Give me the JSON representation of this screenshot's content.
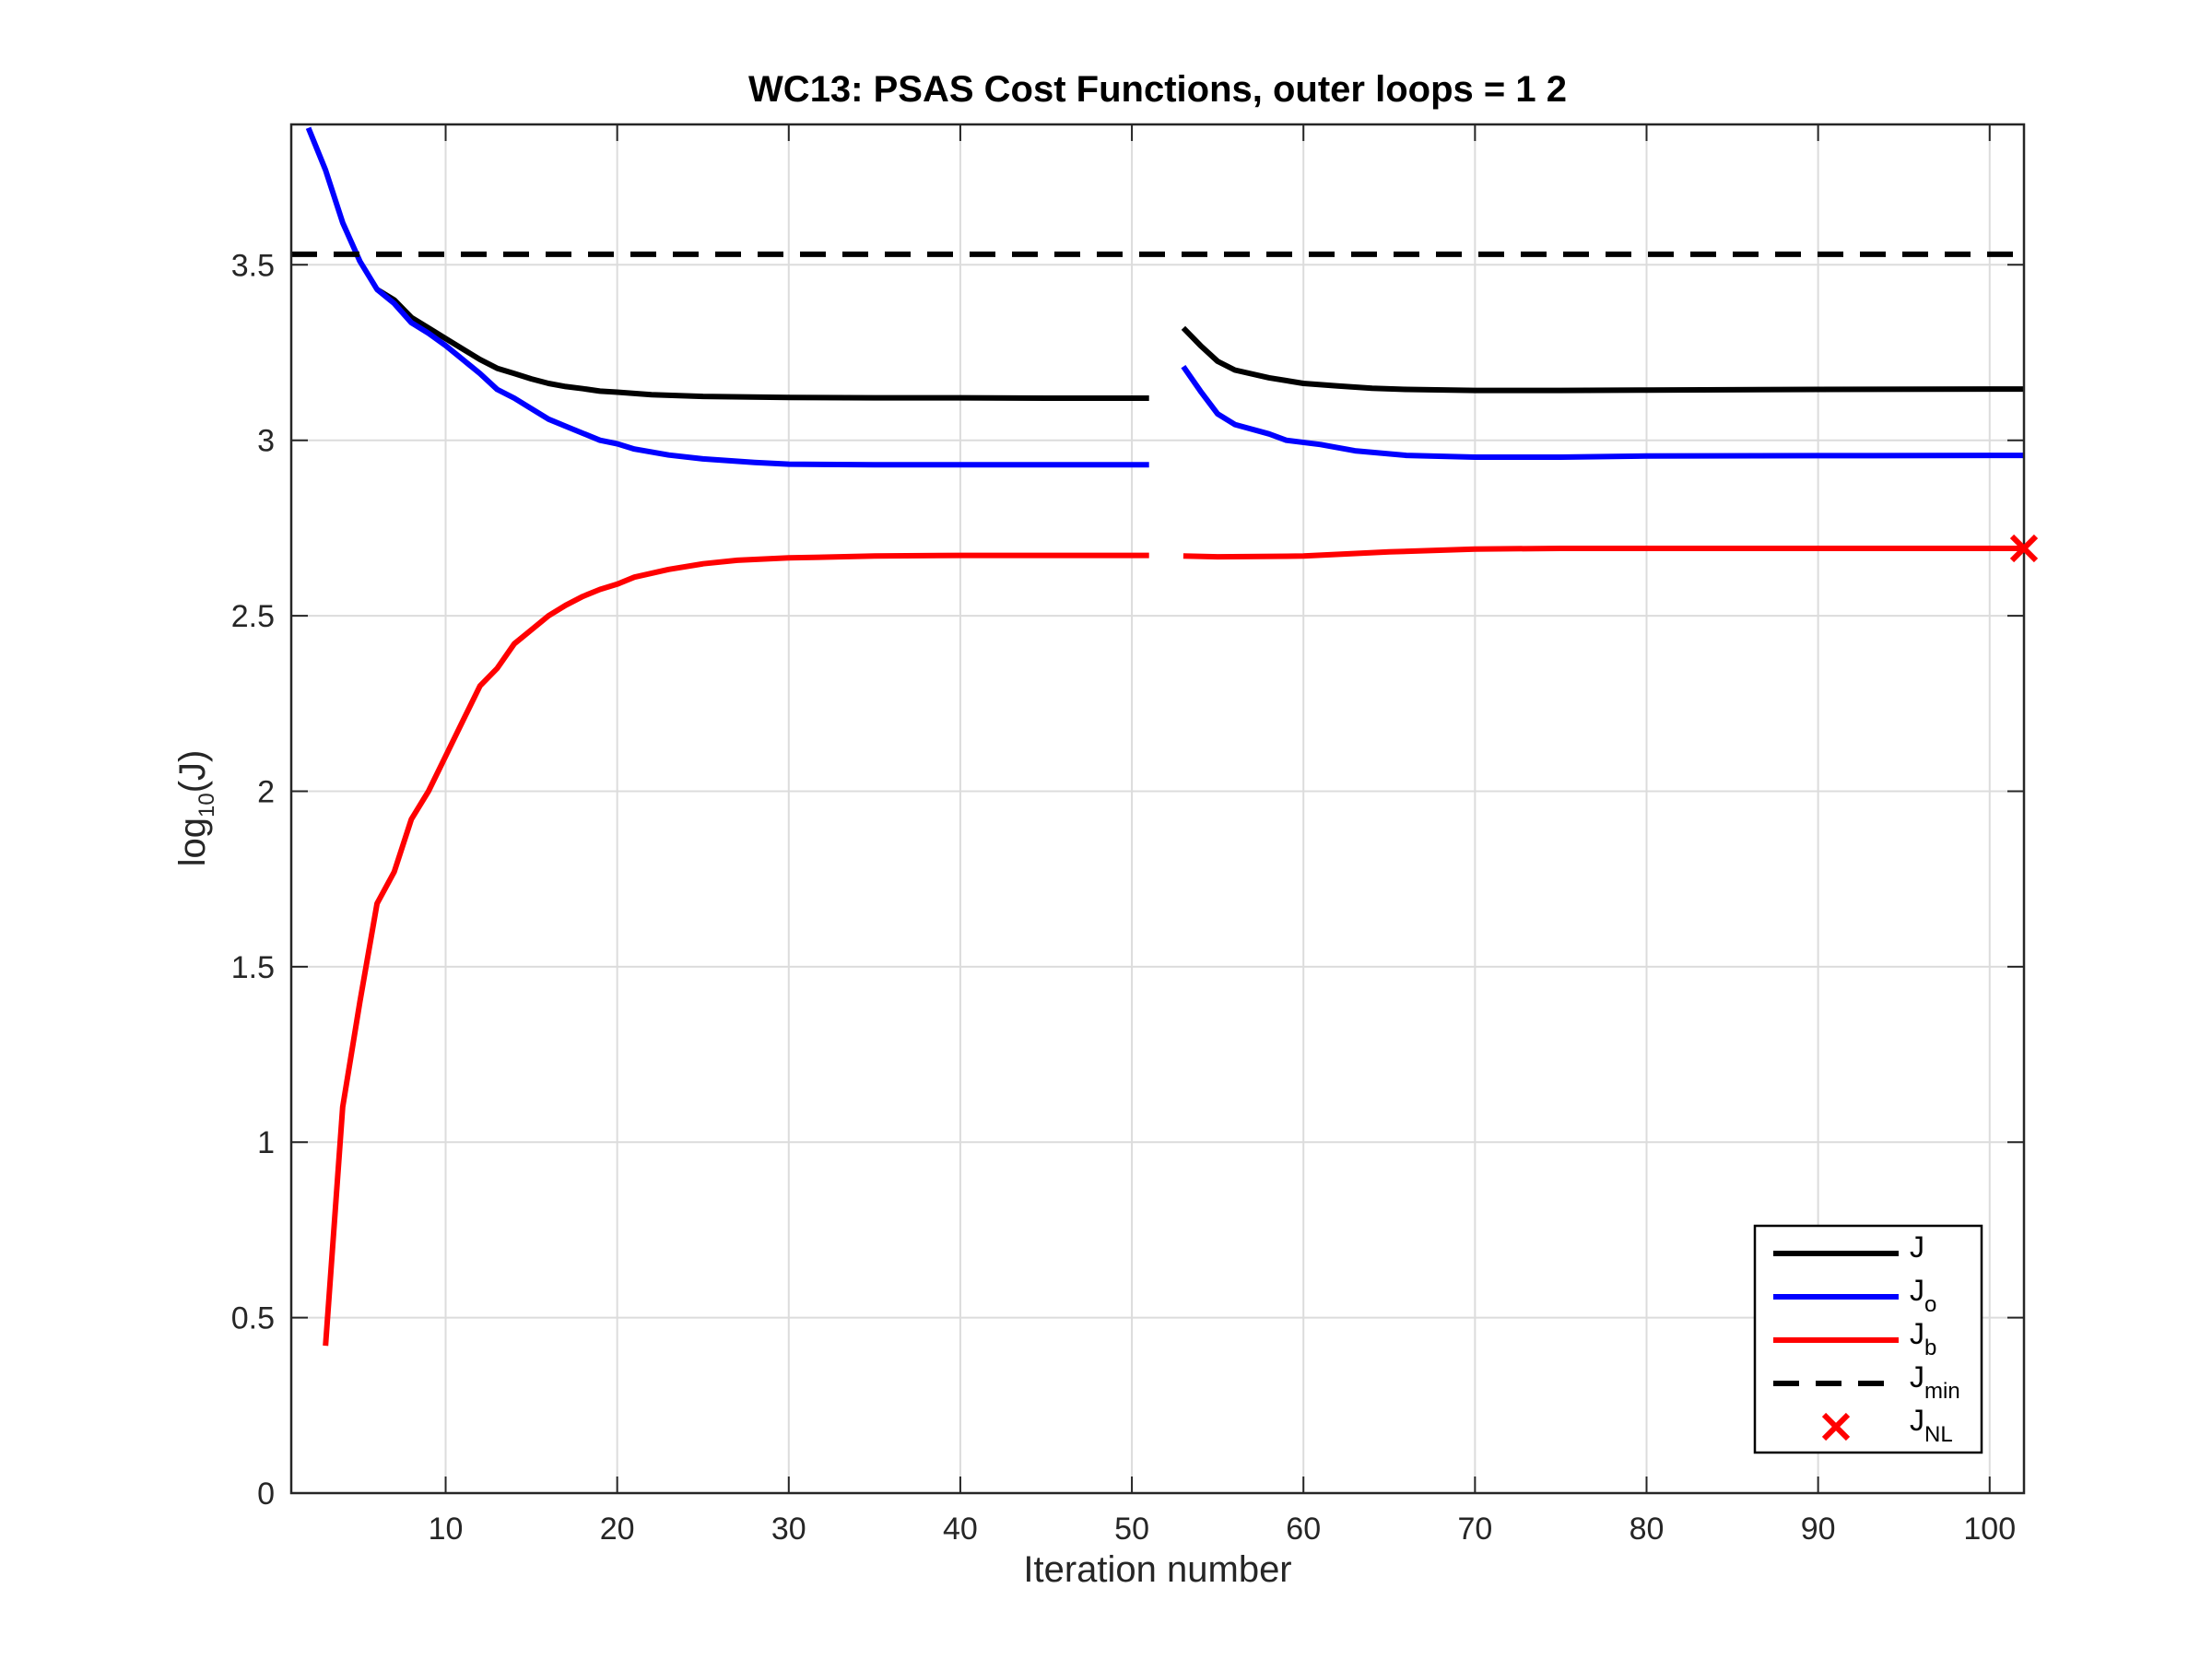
{
  "chart_data": {
    "type": "line",
    "title": "WC13: PSAS Cost Functions, outer loops = 1  2",
    "xlabel": "Iteration number",
    "ylabel": {
      "main": "log",
      "sub": "10",
      "rest": "(J)"
    },
    "xlim": [
      1,
      102
    ],
    "ylim": [
      0,
      3.9
    ],
    "xticks": [
      10,
      20,
      30,
      40,
      50,
      60,
      70,
      80,
      90,
      100
    ],
    "yticks": [
      0,
      0.5,
      1,
      1.5,
      2,
      2.5,
      3,
      3.5
    ],
    "yticklabels": [
      "0",
      "0.5",
      "1",
      "1.5",
      "2",
      "2.5",
      "3",
      "3.5"
    ],
    "grid": true,
    "legend_position": "bottom-right",
    "series": [
      {
        "name": "J",
        "legend_main": "J",
        "legend_sub": "",
        "color": "#000000",
        "style": "solid",
        "segments": [
          [
            [
              6,
              3.43
            ],
            [
              7,
              3.4
            ],
            [
              8,
              3.35
            ],
            [
              9,
              3.32
            ],
            [
              10,
              3.29
            ],
            [
              11,
              3.26
            ],
            [
              12,
              3.23
            ],
            [
              13,
              3.205
            ],
            [
              14,
              3.19
            ],
            [
              15,
              3.175
            ],
            [
              16,
              3.162
            ],
            [
              17,
              3.153
            ],
            [
              18,
              3.147
            ],
            [
              19,
              3.14
            ],
            [
              20,
              3.137
            ],
            [
              22,
              3.13
            ],
            [
              25,
              3.125
            ],
            [
              30,
              3.122
            ],
            [
              35,
              3.121
            ],
            [
              40,
              3.121
            ],
            [
              45,
              3.12
            ],
            [
              51,
              3.12
            ]
          ],
          [
            [
              53,
              3.32
            ],
            [
              54,
              3.27
            ],
            [
              55,
              3.225
            ],
            [
              56,
              3.2
            ],
            [
              58,
              3.178
            ],
            [
              60,
              3.162
            ],
            [
              62,
              3.155
            ],
            [
              64,
              3.148
            ],
            [
              66,
              3.145
            ],
            [
              70,
              3.142
            ],
            [
              75,
              3.142
            ],
            [
              80,
              3.143
            ],
            [
              90,
              3.145
            ],
            [
              102,
              3.146
            ]
          ]
        ]
      },
      {
        "name": "Jo",
        "legend_main": "J",
        "legend_sub": "o",
        "color": "#0000ff",
        "style": "solid",
        "segments": [
          [
            [
              2,
              3.89
            ],
            [
              3,
              3.77
            ],
            [
              4,
              3.62
            ],
            [
              5,
              3.51
            ],
            [
              6,
              3.43
            ],
            [
              7,
              3.39
            ],
            [
              8,
              3.335
            ],
            [
              9,
              3.305
            ],
            [
              10,
              3.27
            ],
            [
              11,
              3.23
            ],
            [
              12,
              3.19
            ],
            [
              13,
              3.145
            ],
            [
              14,
              3.12
            ],
            [
              15,
              3.09
            ],
            [
              16,
              3.06
            ],
            [
              17,
              3.04
            ],
            [
              18,
              3.02
            ],
            [
              19,
              3.0
            ],
            [
              20,
              2.99
            ],
            [
              21,
              2.975
            ],
            [
              23,
              2.958
            ],
            [
              25,
              2.947
            ],
            [
              28,
              2.937
            ],
            [
              30,
              2.932
            ],
            [
              35,
              2.93
            ],
            [
              40,
              2.93
            ],
            [
              51,
              2.93
            ]
          ],
          [
            [
              53,
              3.21
            ],
            [
              54,
              3.14
            ],
            [
              55,
              3.075
            ],
            [
              56,
              3.045
            ],
            [
              58,
              3.018
            ],
            [
              59,
              3.0
            ],
            [
              61,
              2.988
            ],
            [
              63,
              2.97
            ],
            [
              66,
              2.957
            ],
            [
              70,
              2.952
            ],
            [
              75,
              2.952
            ],
            [
              80,
              2.955
            ],
            [
              90,
              2.956
            ],
            [
              102,
              2.957
            ]
          ]
        ]
      },
      {
        "name": "Jb",
        "legend_main": "J",
        "legend_sub": "b",
        "color": "#ff0000",
        "style": "solid",
        "segments": [
          [
            [
              3,
              0.42
            ],
            [
              4,
              1.1
            ],
            [
              5,
              1.4
            ],
            [
              6,
              1.68
            ],
            [
              7,
              1.77
            ],
            [
              8,
              1.92
            ],
            [
              9,
              2.0
            ],
            [
              10,
              2.1
            ],
            [
              11,
              2.2
            ],
            [
              12,
              2.3
            ],
            [
              13,
              2.35
            ],
            [
              14,
              2.42
            ],
            [
              15,
              2.46
            ],
            [
              16,
              2.5
            ],
            [
              17,
              2.53
            ],
            [
              18,
              2.555
            ],
            [
              19,
              2.575
            ],
            [
              20,
              2.59
            ],
            [
              21,
              2.61
            ],
            [
              23,
              2.632
            ],
            [
              25,
              2.648
            ],
            [
              27,
              2.658
            ],
            [
              30,
              2.665
            ],
            [
              35,
              2.67
            ],
            [
              40,
              2.672
            ],
            [
              51,
              2.672
            ]
          ],
          [
            [
              53,
              2.67
            ],
            [
              55,
              2.668
            ],
            [
              60,
              2.67
            ],
            [
              65,
              2.682
            ],
            [
              70,
              2.69
            ],
            [
              75,
              2.692
            ],
            [
              80,
              2.692
            ],
            [
              90,
              2.692
            ],
            [
              102,
              2.692
            ]
          ]
        ]
      },
      {
        "name": "Jmin",
        "legend_main": "J",
        "legend_sub": "min",
        "color": "#000000",
        "style": "dashed",
        "segments": [
          [
            [
              1,
              3.53
            ],
            [
              102,
              3.53
            ]
          ]
        ]
      }
    ],
    "markers": [
      {
        "name": "JNL",
        "legend_main": "J",
        "legend_sub": "NL",
        "color": "#ff0000",
        "symbol": "x",
        "x": 102,
        "y": 2.692
      }
    ]
  }
}
